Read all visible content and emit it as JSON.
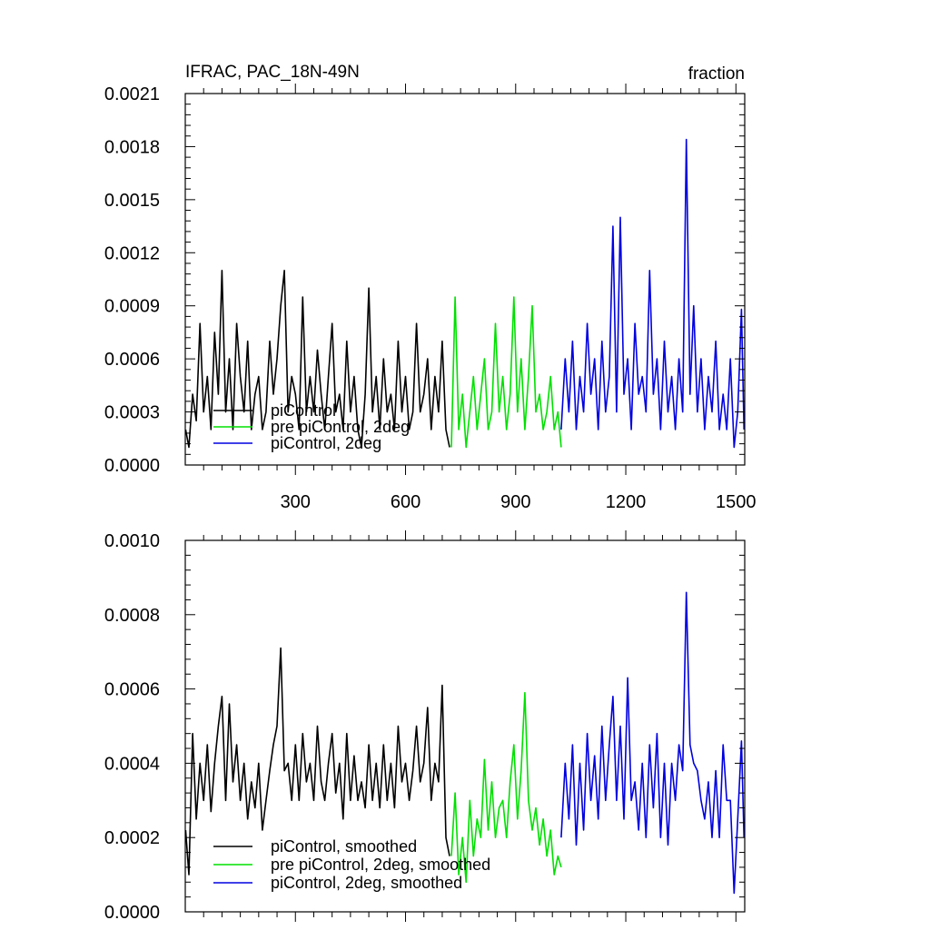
{
  "chart_data": [
    {
      "type": "line",
      "title": "IFRAC, PAC_18N-49N",
      "units": "fraction",
      "xlabel": "",
      "ylabel": "",
      "xlim": [
        0,
        1524
      ],
      "ylim": [
        0,
        0.0021
      ],
      "x_ticks": [
        300,
        600,
        900,
        1200,
        1500
      ],
      "x_tick_labels": [
        "300",
        "600",
        "900",
        "1200",
        "1500"
      ],
      "y_ticks": [
        0.0,
        0.0003,
        0.0006,
        0.0009,
        0.0012,
        0.0015,
        0.0018,
        0.0021
      ],
      "y_tick_labels": [
        "0.0000",
        "0.0003",
        "0.0006",
        "0.0009",
        "0.0012",
        "0.0015",
        "0.0018",
        "0.0021"
      ],
      "grid": false,
      "legend_position": "lower-left",
      "legend_entries": [
        "piControl",
        "pre piControl, 2deg",
        "piControl, 2deg"
      ],
      "series": [
        {
          "name": "piControl",
          "color": "#000000",
          "x": [
            1,
            10,
            20,
            30,
            40,
            50,
            60,
            70,
            80,
            90,
            100,
            110,
            120,
            130,
            140,
            150,
            160,
            170,
            180,
            190,
            200,
            210,
            220,
            230,
            240,
            250,
            260,
            270,
            280,
            290,
            300,
            310,
            320,
            330,
            340,
            350,
            360,
            370,
            380,
            390,
            400,
            410,
            420,
            430,
            440,
            450,
            460,
            470,
            480,
            490,
            500,
            510,
            520,
            530,
            540,
            550,
            560,
            570,
            580,
            590,
            600,
            610,
            620,
            630,
            640,
            650,
            660,
            670,
            680,
            690,
            700,
            710,
            720
          ],
          "y": [
            0.0002,
            0.0001,
            0.0004,
            0.00025,
            0.0008,
            0.0003,
            0.0005,
            0.0002,
            0.00075,
            0.0004,
            0.0011,
            0.0003,
            0.0006,
            0.0002,
            0.0008,
            0.0005,
            0.0003,
            0.0007,
            0.0002,
            0.0004,
            0.0005,
            0.0002,
            0.0003,
            0.0007,
            0.0004,
            0.0006,
            0.0009,
            0.0011,
            0.0003,
            0.0005,
            0.0004,
            0.0002,
            0.00095,
            0.0003,
            0.0005,
            0.0003,
            0.00065,
            0.0004,
            0.0002,
            0.0005,
            0.0008,
            0.0003,
            0.0004,
            0.0002,
            0.0007,
            0.0003,
            0.0005,
            0.0002,
            0.0001,
            0.0004,
            0.001,
            0.0003,
            0.0005,
            0.0002,
            0.0006,
            0.0003,
            0.0004,
            0.0002,
            0.0007,
            0.0003,
            0.0005,
            0.0002,
            0.0003,
            0.0008,
            0.0003,
            0.0004,
            0.0006,
            0.0002,
            0.0005,
            0.0003,
            0.0007,
            0.0002,
            0.0001
          ]
        },
        {
          "name": "pre piControl, 2deg",
          "color": "#00e000",
          "x": [
            725,
            735,
            745,
            755,
            765,
            775,
            785,
            795,
            805,
            815,
            825,
            835,
            845,
            855,
            865,
            875,
            885,
            895,
            905,
            915,
            925,
            935,
            945,
            955,
            965,
            975,
            985,
            995,
            1005,
            1015,
            1024
          ],
          "y": [
            0.0001,
            0.00095,
            0.0002,
            0.0004,
            0.0001,
            0.0003,
            0.0005,
            0.0002,
            0.0004,
            0.0006,
            0.0002,
            0.0003,
            0.0008,
            0.0003,
            0.0005,
            0.0002,
            0.0004,
            0.00095,
            0.0003,
            0.0006,
            0.0002,
            0.0005,
            0.0009,
            0.0003,
            0.0004,
            0.0002,
            0.0003,
            0.0005,
            0.0002,
            0.0003,
            0.0001
          ]
        },
        {
          "name": "piControl, 2deg",
          "color": "#0000e0",
          "x": [
            1024,
            1035,
            1045,
            1055,
            1065,
            1075,
            1085,
            1095,
            1105,
            1115,
            1125,
            1135,
            1145,
            1155,
            1165,
            1175,
            1185,
            1195,
            1205,
            1215,
            1225,
            1235,
            1245,
            1255,
            1265,
            1275,
            1285,
            1295,
            1305,
            1315,
            1325,
            1335,
            1345,
            1355,
            1365,
            1375,
            1385,
            1395,
            1405,
            1415,
            1425,
            1435,
            1445,
            1455,
            1465,
            1475,
            1485,
            1495,
            1505,
            1515,
            1522
          ],
          "y": [
            0.0002,
            0.0006,
            0.0003,
            0.0007,
            0.0002,
            0.0005,
            0.0003,
            0.0008,
            0.0004,
            0.0006,
            0.0002,
            0.0007,
            0.0003,
            0.0005,
            0.00135,
            0.0003,
            0.0014,
            0.0004,
            0.0006,
            0.0002,
            0.0008,
            0.0004,
            0.0005,
            0.0003,
            0.0011,
            0.0004,
            0.0006,
            0.0002,
            0.0007,
            0.0003,
            0.0005,
            0.0002,
            0.0006,
            0.0003,
            0.00184,
            0.0004,
            0.0009,
            0.0003,
            0.0006,
            0.0002,
            0.0005,
            0.0003,
            0.0007,
            0.0002,
            0.0004,
            0.0002,
            0.0006,
            0.0001,
            0.0003,
            0.00088,
            0.0002
          ]
        }
      ]
    },
    {
      "type": "line",
      "title": "",
      "xlabel": "",
      "ylabel": "",
      "xlim": [
        0,
        1524
      ],
      "ylim": [
        0,
        0.001
      ],
      "x_ticks": [
        300,
        600,
        900,
        1200,
        1500
      ],
      "x_tick_labels": [],
      "y_ticks": [
        0.0,
        0.0002,
        0.0004,
        0.0006,
        0.0008,
        0.001
      ],
      "y_tick_labels": [
        "0.0000",
        "0.0002",
        "0.0004",
        "0.0006",
        "0.0008",
        "0.0010"
      ],
      "grid": false,
      "legend_position": "lower-left",
      "legend_entries": [
        "piControl, smoothed",
        "pre piControl, 2deg, smoothed",
        "piControl, 2deg, smoothed"
      ],
      "series": [
        {
          "name": "piControl, smoothed",
          "color": "#000000",
          "x": [
            1,
            10,
            20,
            30,
            40,
            50,
            60,
            70,
            80,
            90,
            100,
            110,
            120,
            130,
            140,
            150,
            160,
            170,
            180,
            190,
            200,
            210,
            220,
            230,
            240,
            250,
            260,
            270,
            280,
            290,
            300,
            310,
            320,
            330,
            340,
            350,
            360,
            370,
            380,
            390,
            400,
            410,
            420,
            430,
            440,
            450,
            460,
            470,
            480,
            490,
            500,
            510,
            520,
            530,
            540,
            550,
            560,
            570,
            580,
            590,
            600,
            610,
            620,
            630,
            640,
            650,
            660,
            670,
            680,
            690,
            700,
            710,
            720
          ],
          "y": [
            0.00022,
            0.0001,
            0.00048,
            0.00025,
            0.0004,
            0.0003,
            0.00045,
            0.00027,
            0.0004,
            0.0005,
            0.00058,
            0.0003,
            0.00056,
            0.00035,
            0.00045,
            0.0003,
            0.0004,
            0.00025,
            0.00035,
            0.00028,
            0.0004,
            0.00022,
            0.0003,
            0.00038,
            0.00045,
            0.0005,
            0.00071,
            0.00038,
            0.0004,
            0.0003,
            0.00045,
            0.0003,
            0.00048,
            0.00035,
            0.0004,
            0.0003,
            0.0005,
            0.00035,
            0.0003,
            0.0004,
            0.00048,
            0.00032,
            0.0004,
            0.00025,
            0.00048,
            0.0003,
            0.00042,
            0.0003,
            0.00035,
            0.00028,
            0.00045,
            0.0003,
            0.0004,
            0.00028,
            0.00045,
            0.0003,
            0.0004,
            0.00028,
            0.0005,
            0.00035,
            0.0004,
            0.0003,
            0.00038,
            0.0005,
            0.00035,
            0.0004,
            0.00055,
            0.0003,
            0.0004,
            0.00035,
            0.00061,
            0.0002,
            0.00015
          ]
        },
        {
          "name": "pre piControl, 2deg, smoothed",
          "color": "#00e000",
          "x": [
            725,
            735,
            745,
            755,
            765,
            775,
            785,
            795,
            805,
            815,
            825,
            835,
            845,
            855,
            865,
            875,
            885,
            895,
            905,
            915,
            925,
            935,
            945,
            955,
            965,
            975,
            985,
            995,
            1005,
            1015,
            1024
          ],
          "y": [
            0.00015,
            0.00032,
            0.0001,
            0.0002,
            8e-05,
            0.0003,
            0.00015,
            0.00025,
            0.0002,
            0.00041,
            0.00022,
            0.00035,
            0.0002,
            0.00028,
            0.0003,
            0.0002,
            0.00035,
            0.00045,
            0.00025,
            0.00038,
            0.00059,
            0.0003,
            0.00022,
            0.00028,
            0.00018,
            0.00025,
            0.00015,
            0.00022,
            0.0001,
            0.00015,
            0.00012
          ]
        },
        {
          "name": "piControl, 2deg, smoothed",
          "color": "#0000e0",
          "x": [
            1024,
            1035,
            1045,
            1055,
            1065,
            1075,
            1085,
            1095,
            1105,
            1115,
            1125,
            1135,
            1145,
            1155,
            1165,
            1175,
            1185,
            1195,
            1205,
            1215,
            1225,
            1235,
            1245,
            1255,
            1265,
            1275,
            1285,
            1295,
            1305,
            1315,
            1325,
            1335,
            1345,
            1355,
            1365,
            1375,
            1385,
            1395,
            1405,
            1415,
            1425,
            1435,
            1445,
            1455,
            1465,
            1475,
            1485,
            1495,
            1505,
            1515,
            1522
          ],
          "y": [
            0.0002,
            0.0004,
            0.00025,
            0.00045,
            0.00018,
            0.0004,
            0.00022,
            0.00048,
            0.0003,
            0.00042,
            0.00025,
            0.0005,
            0.0003,
            0.00045,
            0.00058,
            0.0003,
            0.0005,
            0.00025,
            0.00063,
            0.0003,
            0.00035,
            0.00022,
            0.0004,
            0.0002,
            0.00045,
            0.00028,
            0.00048,
            0.0002,
            0.0004,
            0.00018,
            0.0004,
            0.0003,
            0.00045,
            0.00038,
            0.00086,
            0.00045,
            0.0004,
            0.00038,
            0.0003,
            0.00025,
            0.00035,
            0.0002,
            0.00038,
            0.0002,
            0.00045,
            0.0003,
            0.0003,
            5e-05,
            0.00025,
            0.00046,
            0.0002
          ]
        }
      ]
    }
  ]
}
